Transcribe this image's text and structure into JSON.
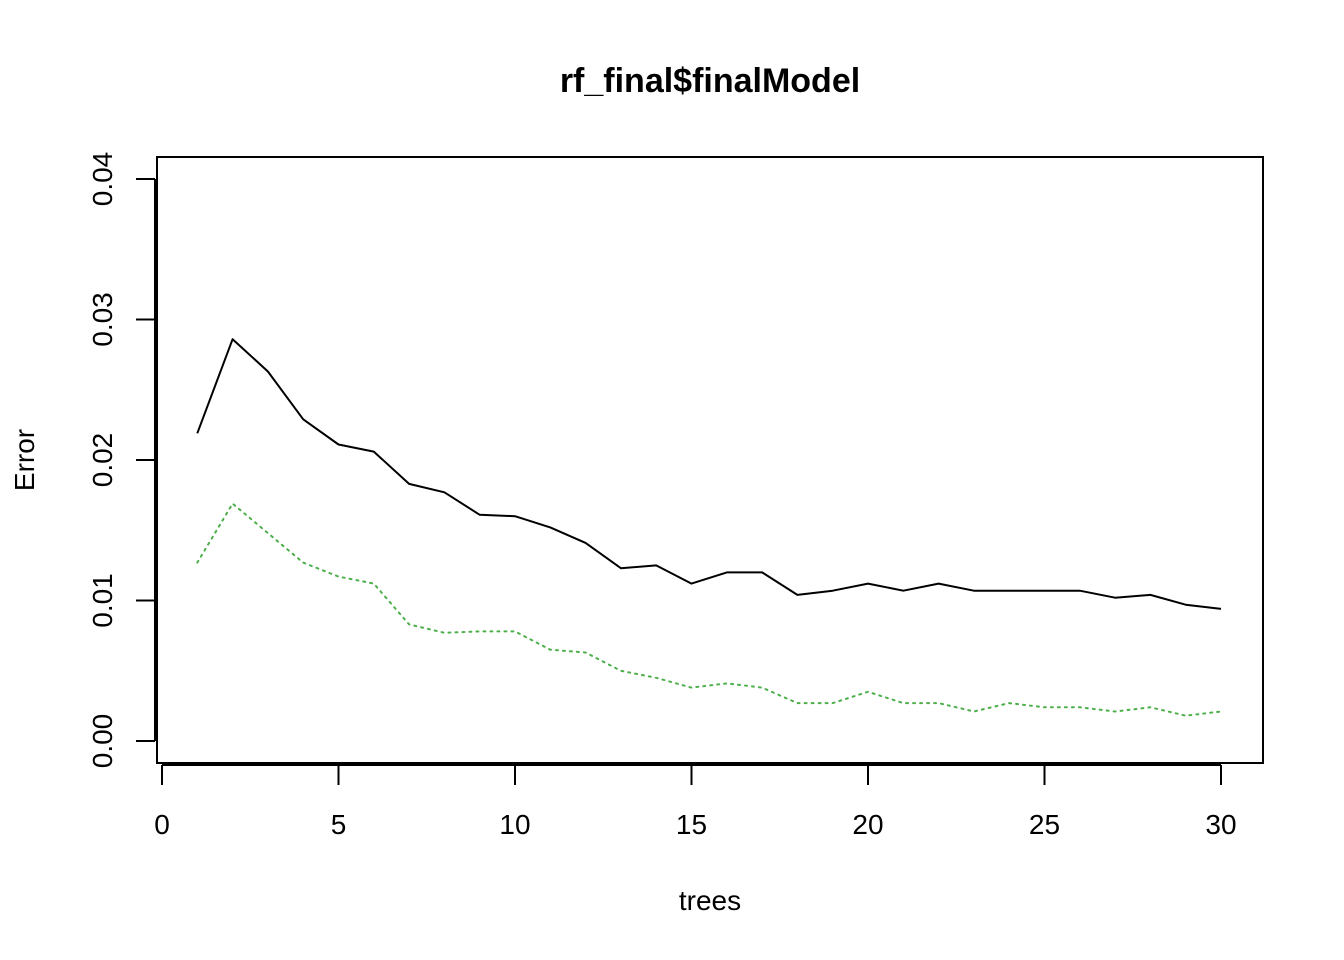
{
  "chart_data": {
    "type": "line",
    "title": "rf_final$finalModel",
    "xlabel": "trees",
    "ylabel": "Error",
    "xlim": [
      0,
      30
    ],
    "ylim": [
      0,
      0.04
    ],
    "x_ticks": [
      0,
      5,
      10,
      15,
      20,
      25,
      30
    ],
    "y_ticks": [
      0.0,
      0.01,
      0.02,
      0.03,
      0.04
    ],
    "x_tick_labels": [
      "0",
      "5",
      "10",
      "15",
      "20",
      "25",
      "30"
    ],
    "y_tick_labels": [
      "0.00",
      "0.01",
      "0.02",
      "0.03",
      "0.04"
    ],
    "grid": false,
    "legend": "none",
    "series": [
      {
        "color": "#000000",
        "line_style": "solid",
        "x": [
          1,
          2,
          3,
          4,
          5,
          6,
          7,
          8,
          9,
          10,
          11,
          12,
          13,
          14,
          15,
          16,
          17,
          18,
          19,
          20,
          21,
          22,
          23,
          24,
          25,
          26,
          27,
          28,
          29,
          30
        ],
        "values": [
          0.0219,
          0.0286,
          0.0263,
          0.0229,
          0.0211,
          0.0206,
          0.0183,
          0.0177,
          0.0161,
          0.016,
          0.0152,
          0.0141,
          0.0123,
          0.0125,
          0.0112,
          0.012,
          0.012,
          0.0104,
          0.0107,
          0.0112,
          0.0107,
          0.0112,
          0.0107,
          0.0107,
          0.0107,
          0.0107,
          0.0102,
          0.0104,
          0.0097,
          0.0094
        ]
      },
      {
        "color": "#4daf4a",
        "line_style": "dotted",
        "x": [
          1,
          2,
          3,
          4,
          5,
          6,
          7,
          8,
          9,
          10,
          11,
          12,
          13,
          14,
          15,
          16,
          17,
          18,
          19,
          20,
          21,
          22,
          23,
          24,
          25,
          26,
          27,
          28,
          29,
          30
        ],
        "values": [
          0.0127,
          0.0169,
          0.0148,
          0.0127,
          0.0117,
          0.0112,
          0.0083,
          0.0077,
          0.0078,
          0.0078,
          0.0065,
          0.0063,
          0.005,
          0.0045,
          0.0038,
          0.0041,
          0.0038,
          0.0027,
          0.0027,
          0.0035,
          0.0027,
          0.0027,
          0.0021,
          0.0027,
          0.0024,
          0.0024,
          0.0021,
          0.0024,
          0.0018,
          0.0021
        ]
      }
    ]
  }
}
